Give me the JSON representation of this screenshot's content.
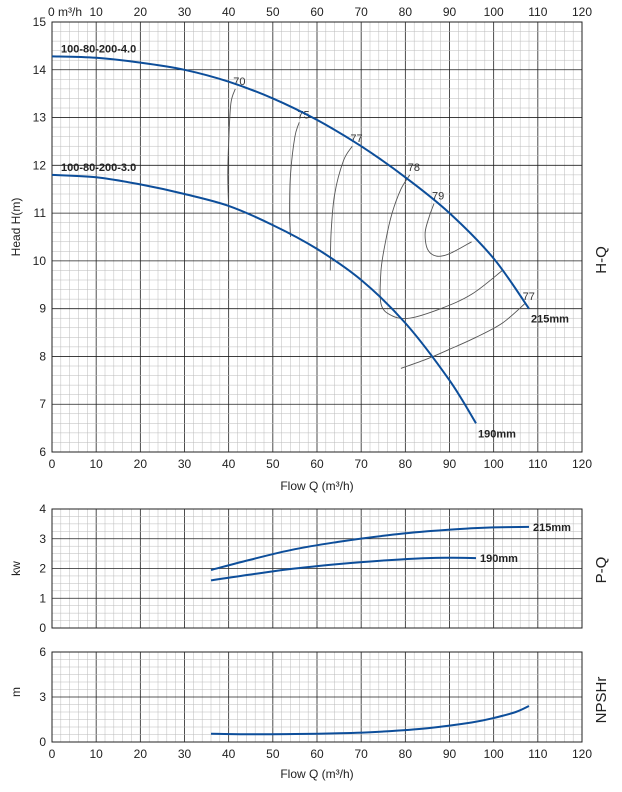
{
  "chart_data": [
    {
      "type": "line",
      "id": "hq",
      "side_label": "H-Q",
      "ylabel": "Head H(m)",
      "xlabel": "Flow Q (m³/h)",
      "xlabel_top": "m³/h",
      "xlim": [
        0,
        120
      ],
      "ylim": [
        6,
        15
      ],
      "xticks": [
        0,
        10,
        20,
        30,
        40,
        50,
        60,
        70,
        80,
        90,
        100,
        110,
        120
      ],
      "yticks": [
        6,
        7,
        8,
        9,
        10,
        11,
        12,
        13,
        14,
        15
      ],
      "grid": true,
      "series": [
        {
          "name": "215mm",
          "end_label": "215mm",
          "start_label": "100-80-200-4.0",
          "x": [
            0,
            10,
            20,
            30,
            40,
            50,
            60,
            70,
            80,
            90,
            100,
            108
          ],
          "y": [
            14.28,
            14.25,
            14.15,
            14.0,
            13.75,
            13.4,
            12.95,
            12.4,
            11.75,
            11.0,
            10.05,
            9.0
          ]
        },
        {
          "name": "190mm",
          "end_label": "190mm",
          "start_label": "100-80-200-3.0",
          "x": [
            0,
            10,
            20,
            30,
            40,
            50,
            60,
            70,
            80,
            90,
            96
          ],
          "y": [
            11.8,
            11.75,
            11.6,
            11.4,
            11.15,
            10.75,
            10.25,
            9.6,
            8.7,
            7.5,
            6.6
          ]
        }
      ],
      "efficiency_contours": [
        {
          "label": "70",
          "x": [
            41.5,
            40.5,
            40,
            39.8,
            40
          ],
          "y": [
            13.6,
            13.3,
            12.5,
            11.8,
            11.1
          ]
        },
        {
          "label": "75",
          "x": [
            56,
            55,
            54,
            53.8,
            54
          ],
          "y": [
            12.9,
            12.6,
            11.8,
            11.0,
            10.5
          ]
        },
        {
          "label": "77",
          "x": [
            68,
            66,
            64,
            63.2,
            63
          ],
          "y": [
            12.4,
            12.1,
            11.4,
            10.6,
            9.8
          ]
        },
        {
          "label": "78",
          "x": [
            81,
            79,
            77,
            75.5,
            74.5,
            74.5,
            77,
            81,
            88,
            95,
            102
          ],
          "y": [
            11.8,
            11.5,
            11.0,
            10.4,
            9.8,
            9.1,
            8.85,
            8.8,
            9.0,
            9.3,
            9.8
          ]
        },
        {
          "label": "79",
          "x": [
            86.5,
            85.5,
            84.5,
            85,
            87,
            90,
            95
          ],
          "y": [
            11.2,
            10.95,
            10.6,
            10.25,
            10.1,
            10.15,
            10.4
          ]
        },
        {
          "label": "77",
          "x": [
            107,
            102,
            96,
            90,
            85,
            79
          ],
          "y": [
            9.1,
            8.7,
            8.4,
            8.15,
            7.95,
            7.75
          ]
        }
      ]
    },
    {
      "type": "line",
      "id": "pq",
      "side_label": "P-Q",
      "ylabel": "kw",
      "xlim": [
        0,
        120
      ],
      "ylim": [
        0,
        4
      ],
      "yticks": [
        0,
        1,
        2,
        3,
        4
      ],
      "grid": true,
      "series": [
        {
          "name": "215mm",
          "end_label": "215mm",
          "x": [
            36,
            45,
            55,
            65,
            75,
            85,
            95,
            100,
            108
          ],
          "y": [
            1.95,
            2.3,
            2.65,
            2.9,
            3.1,
            3.25,
            3.35,
            3.38,
            3.4
          ]
        },
        {
          "name": "190mm",
          "end_label": "190mm",
          "x": [
            36,
            45,
            55,
            65,
            75,
            85,
            91,
            96
          ],
          "y": [
            1.6,
            1.8,
            2.0,
            2.15,
            2.27,
            2.35,
            2.36,
            2.35
          ]
        }
      ]
    },
    {
      "type": "line",
      "id": "npsh",
      "side_label": "NPSHr",
      "ylabel": "m",
      "xlabel": "Flow Q (m³/h)",
      "xlim": [
        0,
        120
      ],
      "ylim": [
        0,
        6
      ],
      "yticks": [
        0,
        3,
        6
      ],
      "xticks": [
        0,
        10,
        20,
        30,
        40,
        50,
        60,
        70,
        80,
        90,
        100,
        110,
        120
      ],
      "grid": true,
      "series": [
        {
          "name": "NPSHr",
          "x": [
            36,
            45,
            55,
            65,
            75,
            85,
            95,
            100,
            105,
            108
          ],
          "y": [
            0.55,
            0.52,
            0.53,
            0.58,
            0.7,
            0.92,
            1.3,
            1.6,
            2.0,
            2.4
          ]
        }
      ]
    }
  ],
  "colors": {
    "curve": "#0d4e9a",
    "grid_major": "#222222",
    "grid_minor": "#bbbbbb",
    "contour": "#555555"
  }
}
